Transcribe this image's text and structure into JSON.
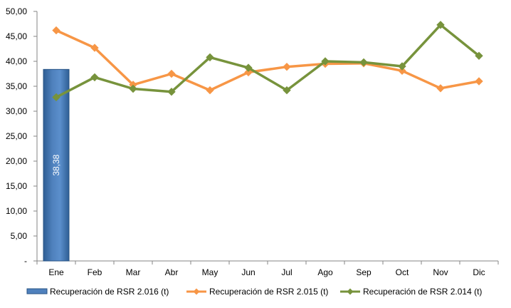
{
  "chart_data": {
    "type": "bar",
    "title": "",
    "xlabel": "",
    "ylabel": "",
    "categories": [
      "Ene",
      "Feb",
      "Mar",
      "Abr",
      "May",
      "Jun",
      "Jul",
      "Ago",
      "Sep",
      "Oct",
      "Nov",
      "Dic"
    ],
    "ylim": [
      0,
      50
    ],
    "y_ticks": [
      "-",
      "5,00",
      "10,00",
      "15,00",
      "20,00",
      "25,00",
      "30,00",
      "35,00",
      "40,00",
      "45,00",
      "50,00"
    ],
    "grid": false,
    "legend_position": "bottom",
    "series": [
      {
        "name": "Recuperación de RSR 2.016 (t)",
        "type": "bar",
        "color": "#4f81bd",
        "values": [
          38.38,
          null,
          null,
          null,
          null,
          null,
          null,
          null,
          null,
          null,
          null,
          null
        ],
        "data_labels": [
          "38,38",
          null,
          null,
          null,
          null,
          null,
          null,
          null,
          null,
          null,
          null,
          null
        ]
      },
      {
        "name": "Recuperación de RSR 2.015 (t)",
        "type": "line",
        "color": "#f79646",
        "marker": "diamond",
        "values": [
          46.2,
          42.7,
          35.3,
          37.5,
          34.2,
          37.8,
          38.9,
          39.5,
          39.6,
          38.1,
          34.6,
          36.0
        ]
      },
      {
        "name": "Recuperación de RSR 2.014 (t)",
        "type": "line",
        "color": "#77933c",
        "marker": "diamond",
        "values": [
          32.8,
          36.8,
          34.5,
          33.9,
          40.8,
          38.7,
          34.2,
          40.0,
          39.8,
          39.0,
          47.3,
          41.1
        ]
      }
    ]
  }
}
